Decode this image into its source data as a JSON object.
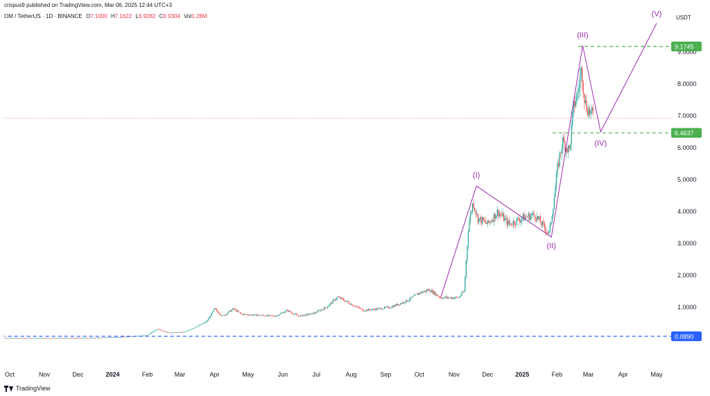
{
  "header": {
    "publish_line": "crispus9 published on TradingView.com, Mar 06, 2025 12:44 UTC+3",
    "symbol": "OM / TetherUS · 1D · BINANCE",
    "open_label": "O",
    "open_value": "7.1000",
    "high_label": "H",
    "high_value": "7.1622",
    "low_label": "L",
    "low_value": "6.9282",
    "close_label": "C",
    "close_value": "6.9304",
    "volume_label": "Vol",
    "volume_value": "1.28M"
  },
  "footer": {
    "brand": "TradingView"
  },
  "colors": {
    "up": "#26a69a",
    "down": "#ef5350",
    "wave": "#9c27b0",
    "green_level": "#4caf50",
    "blue_level": "#2962ff",
    "price_line": "#f23645"
  },
  "chart_data": {
    "type": "candlestick",
    "currency": "USDT",
    "x_axis_labels": [
      "Oct",
      "Nov",
      "Dec",
      "2024",
      "Feb",
      "Mar",
      "Apr",
      "May",
      "Jun",
      "Jul",
      "Aug",
      "Sep",
      "Oct",
      "Nov",
      "Dec",
      "2025",
      "Feb",
      "Mar",
      "Apr",
      "May"
    ],
    "x_axis_bold": [
      "2024",
      "2025"
    ],
    "y_axis_labels": [
      "9.0000",
      "8.0000",
      "7.0000",
      "6.0000",
      "5.0000",
      "4.0000",
      "3.0000",
      "2.0000",
      "1.0000"
    ],
    "ylim": [
      -0.4,
      9.6
    ],
    "levels": [
      {
        "value": 9.1745,
        "label": "9.1745",
        "style": "dashed",
        "color": "#4caf50",
        "x_start": "2025-02-20"
      },
      {
        "value": 6.4637,
        "label": "6.4637",
        "style": "dashed",
        "color": "#4caf50",
        "x_start": "2025-01-28"
      },
      {
        "value": 0.089,
        "label": "0.0890",
        "style": "dashed",
        "color": "#2962ff",
        "x_start": "2023-09-24"
      }
    ],
    "current_price": 6.9304,
    "elliott_waves": [
      {
        "date": "2024-10-20",
        "price": 1.3,
        "label": ""
      },
      {
        "date": "2024-11-21",
        "price": 4.8,
        "label": "(I)"
      },
      {
        "date": "2025-01-27",
        "price": 3.2,
        "label": "(II)"
      },
      {
        "date": "2025-02-24",
        "price": 9.2,
        "label": "(III)"
      },
      {
        "date": "2025-03-12",
        "price": 6.5,
        "label": "(IV)"
      },
      {
        "date": "2025-05-01",
        "price": 9.9,
        "label": "(V)"
      }
    ],
    "price_path": [
      [
        "2023-09-24",
        0.03
      ],
      [
        "2023-11-01",
        0.03
      ],
      [
        "2023-12-15",
        0.04
      ],
      [
        "2024-01-15",
        0.08
      ],
      [
        "2024-02-01",
        0.12
      ],
      [
        "2024-02-10",
        0.32
      ],
      [
        "2024-02-20",
        0.2
      ],
      [
        "2024-03-05",
        0.22
      ],
      [
        "2024-03-15",
        0.38
      ],
      [
        "2024-03-25",
        0.55
      ],
      [
        "2024-04-01",
        0.95
      ],
      [
        "2024-04-08",
        0.72
      ],
      [
        "2024-04-18",
        0.95
      ],
      [
        "2024-04-25",
        0.78
      ],
      [
        "2024-05-10",
        0.75
      ],
      [
        "2024-05-25",
        0.72
      ],
      [
        "2024-06-05",
        0.9
      ],
      [
        "2024-06-15",
        0.72
      ],
      [
        "2024-06-28",
        0.8
      ],
      [
        "2024-07-10",
        1.0
      ],
      [
        "2024-07-20",
        1.32
      ],
      [
        "2024-08-01",
        1.1
      ],
      [
        "2024-08-12",
        0.9
      ],
      [
        "2024-08-25",
        0.95
      ],
      [
        "2024-09-05",
        1.0
      ],
      [
        "2024-09-20",
        1.2
      ],
      [
        "2024-10-01",
        1.45
      ],
      [
        "2024-10-10",
        1.55
      ],
      [
        "2024-10-20",
        1.3
      ],
      [
        "2024-11-05",
        1.3
      ],
      [
        "2024-11-10",
        1.5
      ],
      [
        "2024-11-14",
        3.6
      ],
      [
        "2024-11-18",
        4.3
      ],
      [
        "2024-11-22",
        3.8
      ],
      [
        "2024-12-01",
        3.6
      ],
      [
        "2024-12-10",
        4.0
      ],
      [
        "2024-12-20",
        3.6
      ],
      [
        "2025-01-01",
        3.8
      ],
      [
        "2025-01-12",
        3.9
      ],
      [
        "2025-01-25",
        3.3
      ],
      [
        "2025-01-29",
        4.3
      ],
      [
        "2025-02-02",
        5.5
      ],
      [
        "2025-02-06",
        6.2
      ],
      [
        "2025-02-12",
        5.9
      ],
      [
        "2025-02-16",
        7.3
      ],
      [
        "2025-02-20",
        7.8
      ],
      [
        "2025-02-23",
        8.5
      ],
      [
        "2025-02-26",
        7.4
      ],
      [
        "2025-03-01",
        7.2
      ],
      [
        "2025-03-06",
        6.93
      ]
    ]
  }
}
